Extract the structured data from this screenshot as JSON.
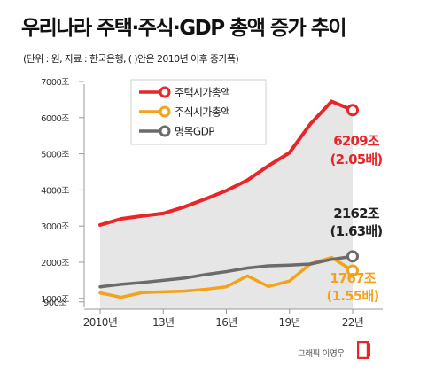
{
  "title": "우리나라 주택·주식·GDP 총액 증가 추이",
  "subtitle": "(단위 : 원, 자료 : 한국은행, (  )안은 2010년 이후 증가폭)",
  "credit": "그래픽 이영우",
  "colors": {
    "housing": "#e8262a",
    "stocks": "#f5a21b",
    "gdp": "#6b6b6b",
    "area": "#e6e6e6"
  },
  "chart_data": {
    "type": "line",
    "x": [
      2010,
      2011,
      2012,
      2013,
      2014,
      2015,
      2016,
      2017,
      2018,
      2019,
      2020,
      2021,
      2022
    ],
    "x_ticks": [
      {
        "value": 2010,
        "label": "2010년"
      },
      {
        "value": 2013,
        "label": "13년"
      },
      {
        "value": 2016,
        "label": "16년"
      },
      {
        "value": 2019,
        "label": "19년"
      },
      {
        "value": 2022,
        "label": "22년"
      }
    ],
    "y_ticks": [
      {
        "value": 900,
        "label": "900조"
      },
      {
        "value": 1000,
        "label": "1000조"
      },
      {
        "value": 2000,
        "label": "2000조"
      },
      {
        "value": 3000,
        "label": "3000조"
      },
      {
        "value": 4000,
        "label": "4000조"
      },
      {
        "value": 5000,
        "label": "5000조"
      },
      {
        "value": 6000,
        "label": "6000조"
      },
      {
        "value": 7000,
        "label": "7000조"
      }
    ],
    "ylim": [
      700,
      7000
    ],
    "series": [
      {
        "key": "housing",
        "name": "주택시가총액",
        "color": "#e8262a",
        "values": [
          3030,
          3200,
          3280,
          3350,
          3530,
          3750,
          3980,
          4270,
          4670,
          5030,
          5830,
          6450,
          6209
        ]
      },
      {
        "key": "stocks",
        "name": "주식시가총액",
        "color": "#f5a21b",
        "values": [
          1150,
          1030,
          1160,
          1180,
          1200,
          1250,
          1320,
          1620,
          1330,
          1480,
          1960,
          2130,
          1767
        ]
      },
      {
        "key": "gdp",
        "name": "명목GDP",
        "color": "#6b6b6b",
        "values": [
          1320,
          1390,
          1440,
          1500,
          1560,
          1660,
          1740,
          1840,
          1900,
          1920,
          1950,
          2080,
          2162
        ]
      }
    ],
    "annotations": [
      {
        "key": "housing",
        "value": "6209조",
        "ratio": "(2.05배)",
        "color": "#e8262a"
      },
      {
        "key": "gdp",
        "value": "2162조",
        "ratio": "(1.63배)",
        "color": "#222222"
      },
      {
        "key": "stocks",
        "value": "1767조",
        "ratio": "(1.55배)",
        "color": "#f5a21b"
      }
    ],
    "area_under": "housing",
    "legend_position": "top-left",
    "grid": false
  }
}
